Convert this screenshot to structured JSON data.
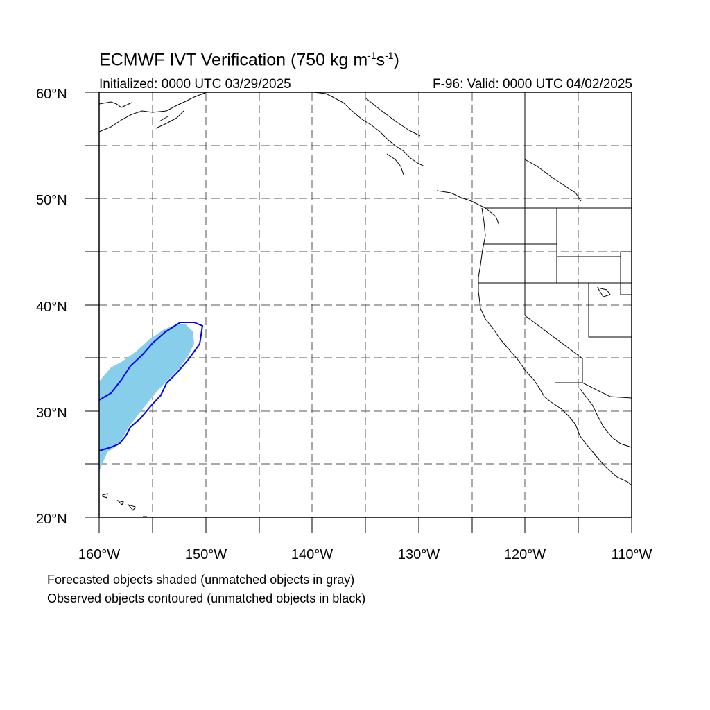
{
  "title": {
    "prefix": "ECMWF IVT Verification (750 kg m",
    "exp1": "-1",
    "mid": "s",
    "exp2": "-1",
    "suffix": ")"
  },
  "initialized": "Initialized: 0000 UTC 03/29/2025",
  "valid": "F-96: Valid: 0000 UTC 04/02/2025",
  "lat_labels": [
    "60°N",
    "50°N",
    "40°N",
    "30°N",
    "20°N"
  ],
  "lon_labels": [
    "160°W",
    "150°W",
    "140°W",
    "130°W",
    "120°W",
    "110°W"
  ],
  "map_extent": {
    "lon_range": [
      -160,
      -110
    ],
    "lat_range": [
      20,
      60
    ]
  },
  "colors": {
    "forecast_fill": "#87ceeb",
    "observed_contour": "#0000ff",
    "coastline": "#000000",
    "grid": "#555555"
  },
  "legend": {
    "line1": "Forecasted objects shaded (unmatched objects in gray)",
    "line2": "Observed objects contoured (unmatched objects in black)"
  }
}
